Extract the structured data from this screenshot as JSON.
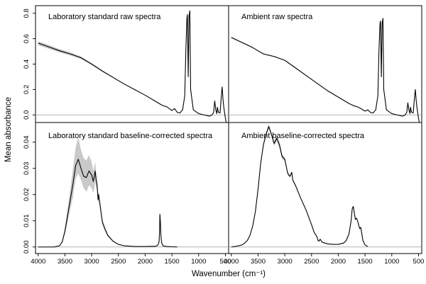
{
  "chart_data": {
    "type": "line",
    "xlabel": "Wavenumber (cm⁻¹)",
    "ylabel": "Mean absorbance",
    "xlim": [
      4050,
      440
    ],
    "x_reversed": true,
    "x_ticks": [
      4000,
      3500,
      3000,
      2500,
      2000,
      1500,
      1000,
      500
    ],
    "x_tick_labels": [
      "4000",
      "3500",
      "3000",
      "2500",
      "2000",
      "1500",
      "1000",
      "500"
    ],
    "rows": [
      {
        "ylim": [
          -0.06,
          0.86
        ],
        "y_ticks": [
          0,
          0.2,
          0.4,
          0.6,
          0.8
        ],
        "y_tick_labels": [
          "0.0",
          "0.2",
          "0.4",
          "0.6",
          "0.8"
        ]
      },
      {
        "ylim": [
          -0.0025,
          0.0475
        ],
        "y_ticks": [
          0,
          0.01,
          0.02,
          0.03,
          0.04
        ],
        "y_tick_labels": [
          "0.00",
          "0.01",
          "0.02",
          "0.03",
          "0.04"
        ]
      }
    ],
    "panels": [
      {
        "id": "lab_raw",
        "title": "Laboratory standard raw spectra",
        "row": 0,
        "col": 0,
        "x": [
          4000,
          3800,
          3600,
          3400,
          3200,
          3000,
          2800,
          2600,
          2400,
          2200,
          2000,
          1800,
          1700,
          1650,
          1600,
          1500,
          1450,
          1400,
          1350,
          1300,
          1260,
          1240,
          1220,
          1210,
          1195,
          1180,
          1165,
          1150,
          1100,
          1000,
          900,
          850,
          800,
          750,
          720,
          700,
          680,
          660,
          650,
          630,
          600,
          570,
          560,
          545,
          530,
          510,
          490,
          470,
          450
        ],
        "y": [
          0.565,
          0.535,
          0.505,
          0.48,
          0.45,
          0.4,
          0.345,
          0.295,
          0.245,
          0.2,
          0.155,
          0.105,
          0.08,
          0.07,
          0.065,
          0.035,
          0.05,
          0.02,
          0.015,
          0.04,
          0.15,
          0.5,
          0.76,
          0.79,
          0.3,
          0.78,
          0.82,
          0.2,
          0.04,
          0.01,
          0.0,
          -0.005,
          -0.01,
          0.0,
          0.02,
          0.11,
          0.04,
          0.01,
          0.06,
          0.02,
          0.015,
          0.18,
          0.22,
          0.12,
          0.06,
          0.0,
          -0.05,
          -0.09,
          -0.1
        ],
        "y_lower": [
          0.55,
          0.52,
          0.492,
          0.468,
          0.44,
          0.393,
          0.34,
          0.291,
          0.242,
          0.198,
          0.154,
          0.104,
          0.079,
          0.069,
          0.064,
          0.034,
          0.049,
          0.019,
          0.014,
          0.039,
          0.149,
          0.499,
          0.759,
          0.789,
          0.299,
          0.779,
          0.819,
          0.199,
          0.039,
          0.009,
          -0.001,
          -0.006,
          -0.011,
          -0.001,
          0.019,
          0.109,
          0.039,
          0.009,
          0.059,
          0.019,
          0.014,
          0.179,
          0.219,
          0.119,
          0.059,
          -0.001,
          -0.051,
          -0.091,
          -0.101
        ],
        "y_upper": [
          0.58,
          0.55,
          0.518,
          0.492,
          0.46,
          0.407,
          0.35,
          0.299,
          0.248,
          0.202,
          0.156,
          0.106,
          0.081,
          0.071,
          0.066,
          0.036,
          0.051,
          0.021,
          0.016,
          0.041,
          0.151,
          0.501,
          0.761,
          0.791,
          0.301,
          0.781,
          0.821,
          0.201,
          0.041,
          0.011,
          0.001,
          -0.004,
          -0.009,
          0.001,
          0.021,
          0.111,
          0.041,
          0.011,
          0.061,
          0.021,
          0.016,
          0.181,
          0.221,
          0.121,
          0.061,
          0.001,
          -0.049,
          -0.089,
          -0.099
        ]
      },
      {
        "id": "amb_raw",
        "title": "Ambient raw spectra",
        "row": 0,
        "col": 1,
        "x": [
          4000,
          3800,
          3600,
          3500,
          3400,
          3200,
          3000,
          2800,
          2600,
          2400,
          2200,
          2000,
          1800,
          1700,
          1650,
          1600,
          1500,
          1450,
          1400,
          1350,
          1300,
          1260,
          1240,
          1220,
          1210,
          1195,
          1180,
          1165,
          1150,
          1100,
          1000,
          900,
          850,
          800,
          750,
          720,
          700,
          680,
          660,
          650,
          630,
          600,
          570,
          560,
          545,
          530,
          510,
          490,
          470,
          450
        ],
        "y": [
          0.61,
          0.57,
          0.53,
          0.505,
          0.48,
          0.46,
          0.43,
          0.37,
          0.31,
          0.25,
          0.19,
          0.14,
          0.09,
          0.07,
          0.065,
          0.055,
          0.03,
          0.04,
          0.02,
          0.015,
          0.04,
          0.15,
          0.5,
          0.72,
          0.74,
          0.3,
          0.72,
          0.76,
          0.2,
          0.04,
          0.01,
          0.0,
          -0.005,
          -0.01,
          0.0,
          0.02,
          0.095,
          0.04,
          0.01,
          0.06,
          0.02,
          0.015,
          0.16,
          0.2,
          0.12,
          0.06,
          0.0,
          -0.05,
          -0.09,
          -0.1
        ],
        "y_lower": [
          0.605,
          0.566,
          0.526,
          0.501,
          0.476,
          0.456,
          0.427,
          0.367,
          0.307,
          0.248,
          0.188,
          0.139,
          0.089,
          0.069,
          0.064,
          0.054,
          0.029,
          0.039,
          0.019,
          0.014,
          0.039,
          0.149,
          0.499,
          0.719,
          0.739,
          0.299,
          0.719,
          0.759,
          0.199,
          0.039,
          0.009,
          -0.001,
          -0.006,
          -0.011,
          -0.001,
          0.019,
          0.094,
          0.039,
          0.009,
          0.059,
          0.019,
          0.014,
          0.159,
          0.199,
          0.119,
          0.059,
          -0.001,
          -0.051,
          -0.091,
          -0.101
        ],
        "y_upper": [
          0.615,
          0.574,
          0.534,
          0.509,
          0.484,
          0.464,
          0.433,
          0.373,
          0.313,
          0.252,
          0.192,
          0.141,
          0.091,
          0.071,
          0.066,
          0.056,
          0.031,
          0.041,
          0.021,
          0.016,
          0.041,
          0.151,
          0.501,
          0.721,
          0.741,
          0.301,
          0.721,
          0.761,
          0.201,
          0.041,
          0.011,
          0.001,
          -0.004,
          -0.009,
          0.001,
          0.021,
          0.096,
          0.041,
          0.011,
          0.061,
          0.021,
          0.016,
          0.161,
          0.201,
          0.121,
          0.061,
          0.001,
          -0.049,
          -0.089,
          -0.099
        ]
      },
      {
        "id": "lab_bc",
        "title": "Laboratory standard baseline-corrected spectra",
        "row": 1,
        "col": 0,
        "x": [
          4000,
          3700,
          3600,
          3550,
          3500,
          3450,
          3400,
          3350,
          3300,
          3250,
          3200,
          3150,
          3100,
          3050,
          3000,
          2970,
          2950,
          2935,
          2920,
          2900,
          2880,
          2870,
          2850,
          2800,
          2750,
          2700,
          2600,
          2500,
          2400,
          2200,
          2000,
          1800,
          1760,
          1740,
          1730,
          1725,
          1715,
          1705,
          1690,
          1670,
          1600,
          1400
        ],
        "y": [
          0.0,
          0.0,
          0.0005,
          0.002,
          0.006,
          0.012,
          0.018,
          0.024,
          0.031,
          0.0335,
          0.03,
          0.027,
          0.0265,
          0.029,
          0.0275,
          0.025,
          0.027,
          0.029,
          0.026,
          0.024,
          0.018,
          0.02,
          0.017,
          0.0095,
          0.0068,
          0.0045,
          0.0022,
          0.001,
          0.0005,
          0.0002,
          0.0002,
          0.0003,
          0.0008,
          0.002,
          0.0065,
          0.0125,
          0.0095,
          0.004,
          0.0015,
          0.0005,
          0.0002,
          0.0
        ],
        "y_lower": [
          0.0,
          0.0,
          0.0004,
          0.0016,
          0.005,
          0.0095,
          0.0145,
          0.019,
          0.026,
          0.028,
          0.0255,
          0.0225,
          0.021,
          0.0235,
          0.0225,
          0.0205,
          0.0225,
          0.025,
          0.023,
          0.022,
          0.0165,
          0.0185,
          0.0155,
          0.0085,
          0.006,
          0.004,
          0.002,
          0.0009,
          0.0004,
          0.0001,
          0.0001,
          0.0002,
          0.0007,
          0.0018,
          0.006,
          0.0118,
          0.009,
          0.0037,
          0.0013,
          0.0004,
          0.0001,
          0.0
        ],
        "y_upper": [
          0.0,
          0.0,
          0.0006,
          0.0025,
          0.0075,
          0.0145,
          0.022,
          0.03,
          0.038,
          0.042,
          0.037,
          0.034,
          0.033,
          0.035,
          0.0325,
          0.029,
          0.031,
          0.0325,
          0.029,
          0.0265,
          0.0195,
          0.0215,
          0.0185,
          0.0105,
          0.0076,
          0.005,
          0.0024,
          0.0011,
          0.0006,
          0.0003,
          0.0003,
          0.0004,
          0.0009,
          0.0022,
          0.007,
          0.0132,
          0.01,
          0.0043,
          0.0017,
          0.0006,
          0.0003,
          0.0
        ]
      },
      {
        "id": "amb_bc",
        "title": "Ambient baseline-corrected spectra",
        "row": 1,
        "col": 1,
        "x": [
          4000,
          3900,
          3800,
          3750,
          3700,
          3650,
          3600,
          3550,
          3500,
          3450,
          3400,
          3350,
          3300,
          3250,
          3200,
          3150,
          3100,
          3050,
          3000,
          2950,
          2930,
          2900,
          2870,
          2850,
          2800,
          2700,
          2600,
          2500,
          2450,
          2400,
          2380,
          2360,
          2340,
          2300,
          2200,
          2100,
          2000,
          1900,
          1850,
          1800,
          1760,
          1740,
          1720,
          1700,
          1680,
          1660,
          1640,
          1620,
          1600,
          1580,
          1560,
          1540,
          1500,
          1450
        ],
        "y": [
          0.0,
          0.0003,
          0.0008,
          0.0015,
          0.0025,
          0.0045,
          0.008,
          0.0135,
          0.022,
          0.032,
          0.039,
          0.043,
          0.046,
          0.043,
          0.0395,
          0.0415,
          0.039,
          0.0345,
          0.0335,
          0.0285,
          0.0275,
          0.027,
          0.0285,
          0.0255,
          0.0235,
          0.0185,
          0.014,
          0.0085,
          0.0055,
          0.004,
          0.0025,
          0.0022,
          0.003,
          0.0018,
          0.0012,
          0.001,
          0.001,
          0.0015,
          0.0025,
          0.005,
          0.01,
          0.0145,
          0.0155,
          0.013,
          0.0105,
          0.011,
          0.01,
          0.0085,
          0.007,
          0.0075,
          0.005,
          0.0025,
          0.0008,
          0.0002
        ],
        "y_lower": [
          0.0,
          0.0002,
          0.0007,
          0.0014,
          0.0024,
          0.0043,
          0.0078,
          0.0132,
          0.0215,
          0.0313,
          0.0382,
          0.0422,
          0.0452,
          0.0422,
          0.0385,
          0.0403,
          0.0378,
          0.0335,
          0.0327,
          0.0279,
          0.0269,
          0.0265,
          0.028,
          0.025,
          0.0231,
          0.0182,
          0.0138,
          0.0083,
          0.0054,
          0.0039,
          0.0024,
          0.0021,
          0.0029,
          0.0017,
          0.0011,
          0.0009,
          0.0009,
          0.0014,
          0.0024,
          0.0049,
          0.0098,
          0.0142,
          0.0152,
          0.0127,
          0.0103,
          0.0108,
          0.0098,
          0.0083,
          0.0069,
          0.0074,
          0.0049,
          0.0024,
          0.0007,
          0.0001
        ],
        "y_upper": [
          0.0,
          0.0004,
          0.0009,
          0.0016,
          0.0026,
          0.0047,
          0.0082,
          0.0138,
          0.0225,
          0.0327,
          0.0398,
          0.0438,
          0.0468,
          0.0438,
          0.0405,
          0.0427,
          0.0402,
          0.0355,
          0.0343,
          0.0291,
          0.0281,
          0.0275,
          0.029,
          0.026,
          0.0239,
          0.0188,
          0.0142,
          0.0087,
          0.0056,
          0.0041,
          0.0026,
          0.0023,
          0.0031,
          0.0019,
          0.0013,
          0.0011,
          0.0011,
          0.0016,
          0.0026,
          0.0051,
          0.0102,
          0.0148,
          0.0158,
          0.0133,
          0.0107,
          0.0112,
          0.0102,
          0.0087,
          0.0071,
          0.0076,
          0.0051,
          0.0026,
          0.0009,
          0.0003
        ]
      }
    ]
  }
}
